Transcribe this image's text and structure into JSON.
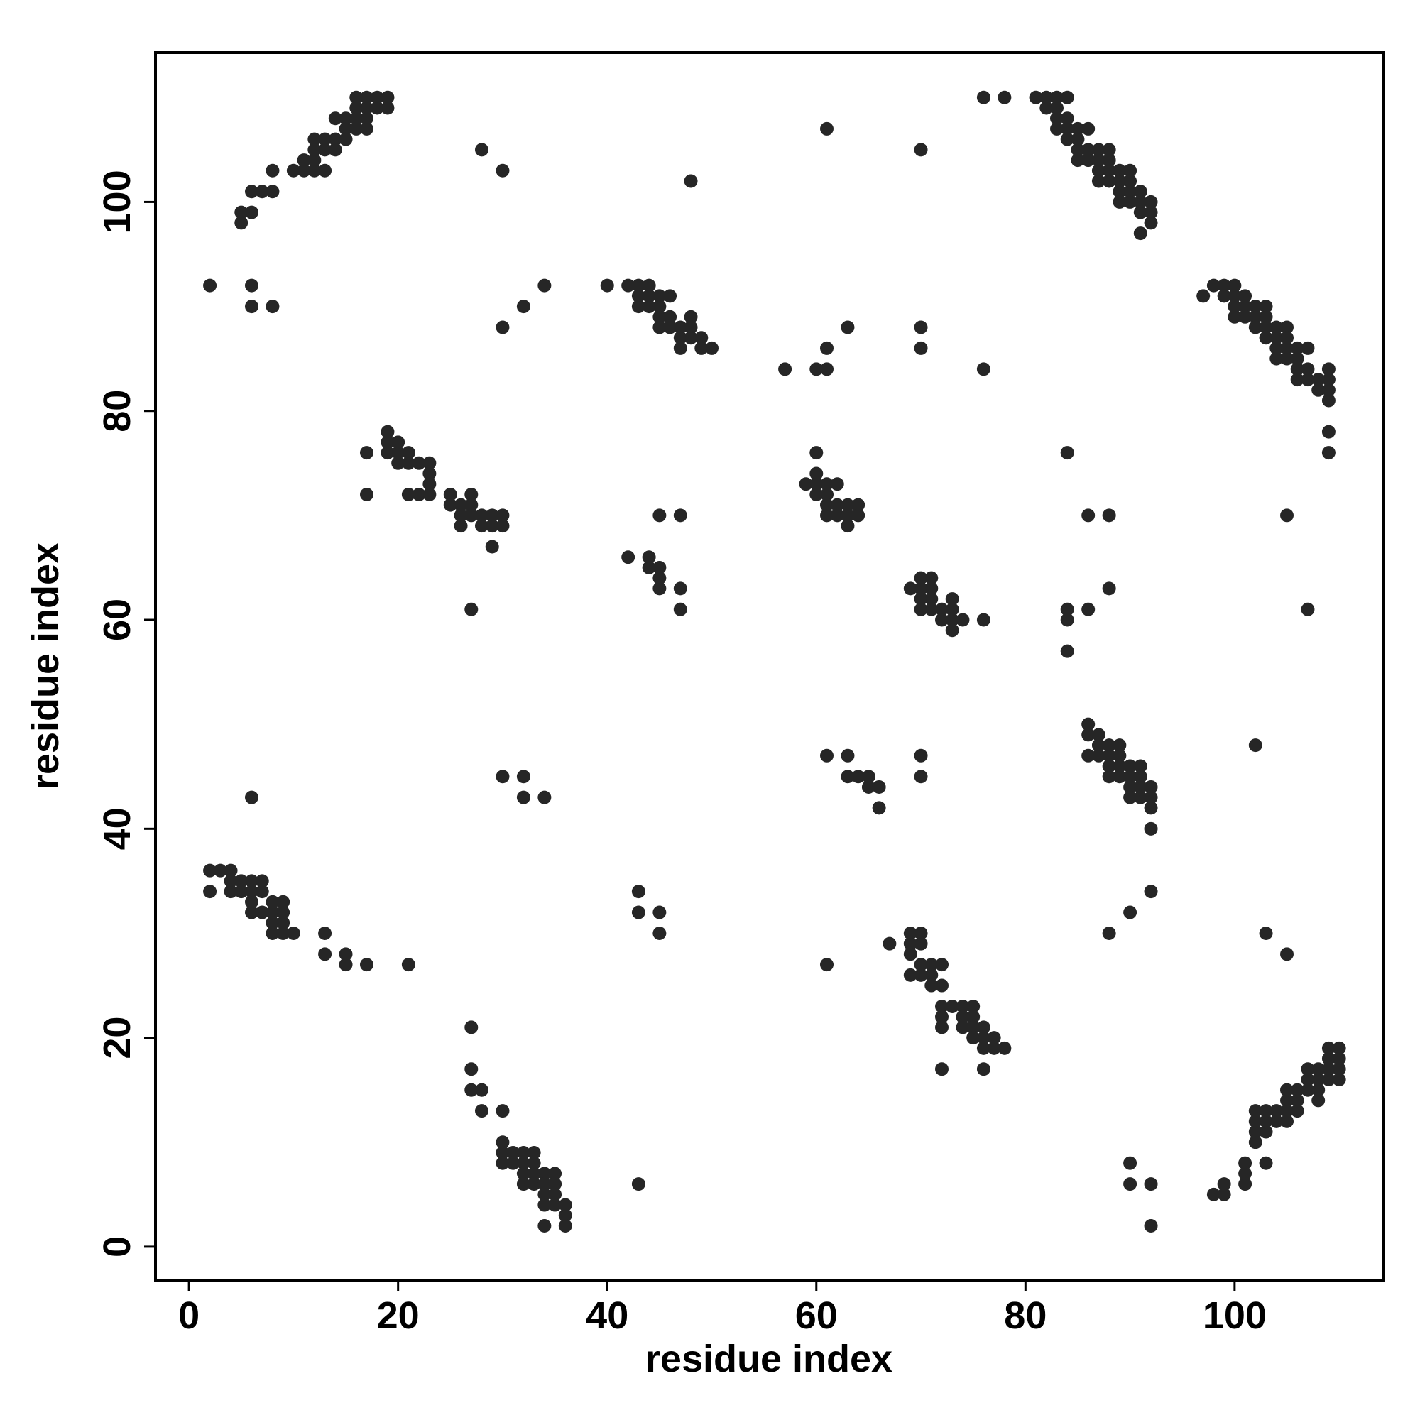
{
  "chart_data": {
    "type": "scatter",
    "xlabel": "residue index",
    "ylabel": "residue index",
    "color": "#262626",
    "xlim": [
      -3.2,
      114.2
    ],
    "ylim": [
      -3.2,
      114.3
    ],
    "xticks": [
      0,
      20,
      40,
      60,
      80,
      100
    ],
    "yticks": [
      0,
      20,
      40,
      60,
      80,
      100
    ],
    "x": [
      5,
      5,
      6,
      6,
      7,
      8,
      8,
      10,
      11,
      11,
      12,
      12,
      12,
      12,
      13,
      13,
      13,
      14,
      14,
      14,
      15,
      15,
      15,
      16,
      16,
      16,
      16,
      17,
      17,
      17,
      17,
      18,
      18,
      19,
      19,
      98,
      99,
      99,
      101,
      101,
      101,
      103,
      102,
      102,
      102,
      102,
      103,
      103,
      103,
      104,
      104,
      105,
      105,
      105,
      105,
      106,
      106,
      106,
      107,
      107,
      107,
      108,
      108,
      108,
      108,
      109,
      109,
      109,
      109,
      110,
      110,
      110,
      110,
      76,
      78,
      81,
      82,
      82,
      83,
      83,
      83,
      83,
      84,
      84,
      84,
      84,
      85,
      85,
      85,
      85,
      86,
      86,
      86,
      87,
      87,
      87,
      87,
      88,
      88,
      88,
      88,
      89,
      89,
      89,
      89,
      90,
      90,
      90,
      90,
      91,
      91,
      91,
      91,
      92,
      92,
      92,
      2,
      2,
      3,
      4,
      4,
      4,
      5,
      5,
      6,
      6,
      6,
      6,
      7,
      7,
      7,
      8,
      8,
      8,
      8,
      9,
      9,
      9,
      9,
      10,
      13,
      13,
      15,
      15,
      17,
      21,
      97,
      98,
      99,
      99,
      100,
      100,
      100,
      100,
      101,
      101,
      101,
      102,
      102,
      102,
      103,
      103,
      103,
      103,
      104,
      104,
      104,
      104,
      105,
      105,
      105,
      105,
      106,
      106,
      106,
      106,
      107,
      107,
      107,
      108,
      108,
      109,
      109,
      109,
      109,
      109,
      109,
      40,
      42,
      43,
      43,
      43,
      44,
      44,
      44,
      45,
      45,
      45,
      45,
      46,
      46,
      46,
      47,
      47,
      47,
      48,
      48,
      48,
      49,
      49,
      50,
      17,
      17,
      19,
      19,
      19,
      20,
      20,
      20,
      21,
      21,
      21,
      22,
      22,
      23,
      23,
      23,
      23,
      25,
      25,
      26,
      26,
      26,
      27,
      27,
      27,
      27,
      28,
      28,
      29,
      29,
      29,
      30,
      30,
      59,
      60,
      60,
      60,
      60,
      61,
      61,
      61,
      61,
      62,
      62,
      62,
      63,
      63,
      63,
      64,
      64,
      42,
      44,
      44,
      45,
      45,
      45,
      47,
      47,
      45,
      47,
      69,
      70,
      70,
      70,
      70,
      71,
      71,
      71,
      71,
      72,
      72,
      73,
      73,
      73,
      73,
      74,
      76,
      86,
      86,
      86,
      87,
      87,
      87,
      88,
      88,
      88,
      88,
      89,
      89,
      89,
      89,
      90,
      90,
      90,
      90,
      91,
      91,
      91,
      91,
      92,
      92,
      92,
      92,
      67,
      69,
      69,
      69,
      69,
      70,
      70,
      70,
      70,
      71,
      71,
      71,
      72,
      72,
      72,
      72,
      72,
      72,
      73,
      74,
      74,
      74,
      75,
      75,
      75,
      75,
      76,
      76,
      76,
      76,
      77,
      77,
      78,
      27,
      27,
      27,
      28,
      28,
      30,
      30,
      30,
      30,
      31,
      31,
      32,
      32,
      32,
      32,
      33,
      33,
      33,
      33,
      34,
      34,
      34,
      34,
      34,
      35,
      35,
      35,
      35,
      36,
      36,
      36,
      2,
      6,
      6,
      8,
      28,
      30,
      48,
      30,
      32,
      34,
      61,
      70,
      57,
      60,
      61,
      61,
      63,
      70,
      70,
      76,
      84,
      86,
      88,
      105,
      88,
      84,
      84,
      86,
      84,
      107,
      102,
      61,
      63,
      63,
      64,
      65,
      65,
      66,
      66,
      70,
      70,
      6,
      30,
      32,
      32,
      34,
      43,
      43,
      45,
      45,
      92,
      90,
      88,
      103,
      105,
      61,
      43,
      90,
      90,
      92,
      92
    ],
    "y": [
      98,
      99,
      99,
      101,
      101,
      101,
      103,
      103,
      103,
      104,
      103,
      104,
      105,
      106,
      103,
      105,
      106,
      105,
      106,
      108,
      106,
      107,
      108,
      107,
      108,
      109,
      110,
      107,
      108,
      109,
      110,
      109,
      110,
      109,
      110,
      5,
      5,
      6,
      6,
      7,
      8,
      8,
      10,
      11,
      12,
      13,
      11,
      12,
      13,
      12,
      13,
      12,
      13,
      14,
      15,
      13,
      14,
      15,
      15,
      16,
      17,
      14,
      15,
      16,
      17,
      16,
      17,
      18,
      19,
      16,
      17,
      18,
      19,
      110,
      110,
      110,
      110,
      109,
      110,
      109,
      108,
      107,
      110,
      108,
      107,
      106,
      107,
      106,
      105,
      104,
      107,
      105,
      104,
      105,
      104,
      103,
      102,
      105,
      104,
      103,
      102,
      103,
      102,
      101,
      100,
      103,
      102,
      101,
      100,
      101,
      100,
      99,
      97,
      100,
      99,
      98,
      36,
      34,
      36,
      36,
      35,
      34,
      35,
      34,
      35,
      34,
      33,
      32,
      35,
      34,
      32,
      33,
      32,
      31,
      30,
      33,
      32,
      31,
      30,
      30,
      30,
      28,
      28,
      27,
      27,
      27,
      91,
      92,
      92,
      91,
      92,
      91,
      90,
      89,
      91,
      90,
      89,
      90,
      89,
      88,
      90,
      89,
      88,
      87,
      88,
      87,
      86,
      85,
      88,
      87,
      86,
      85,
      86,
      85,
      84,
      83,
      86,
      84,
      83,
      83,
      82,
      84,
      83,
      82,
      81,
      78,
      76,
      92,
      92,
      92,
      91,
      90,
      92,
      91,
      90,
      91,
      90,
      89,
      88,
      91,
      89,
      88,
      88,
      87,
      86,
      89,
      88,
      87,
      87,
      86,
      86,
      76,
      72,
      78,
      77,
      76,
      77,
      76,
      75,
      76,
      75,
      72,
      75,
      72,
      75,
      74,
      73,
      72,
      72,
      71,
      71,
      70,
      69,
      72,
      71,
      70,
      61,
      70,
      69,
      70,
      69,
      67,
      70,
      69,
      73,
      76,
      74,
      73,
      72,
      73,
      72,
      71,
      70,
      73,
      71,
      70,
      71,
      70,
      69,
      71,
      70,
      66,
      66,
      65,
      65,
      64,
      63,
      63,
      61,
      70,
      70,
      63,
      64,
      63,
      62,
      61,
      64,
      63,
      62,
      61,
      61,
      60,
      62,
      61,
      60,
      59,
      60,
      60,
      50,
      49,
      47,
      49,
      48,
      47,
      48,
      47,
      46,
      45,
      48,
      47,
      46,
      45,
      46,
      45,
      44,
      43,
      46,
      45,
      44,
      43,
      44,
      43,
      42,
      40,
      29,
      30,
      29,
      28,
      26,
      30,
      29,
      27,
      26,
      27,
      26,
      25,
      27,
      25,
      23,
      22,
      21,
      17,
      23,
      23,
      22,
      21,
      23,
      22,
      21,
      20,
      21,
      20,
      19,
      17,
      20,
      19,
      19,
      21,
      17,
      15,
      15,
      13,
      13,
      10,
      9,
      8,
      9,
      8,
      9,
      8,
      7,
      6,
      9,
      8,
      7,
      6,
      7,
      6,
      5,
      4,
      2,
      7,
      6,
      5,
      4,
      4,
      3,
      2,
      92,
      92,
      90,
      90,
      105,
      103,
      102,
      88,
      90,
      92,
      107,
      105,
      84,
      84,
      84,
      86,
      88,
      88,
      86,
      84,
      76,
      70,
      70,
      70,
      63,
      61,
      60,
      61,
      57,
      61,
      48,
      47,
      47,
      45,
      45,
      45,
      44,
      44,
      42,
      47,
      45,
      43,
      45,
      45,
      43,
      43,
      34,
      32,
      32,
      30,
      34,
      32,
      30,
      30,
      28,
      27,
      6,
      8,
      6,
      6,
      2
    ]
  }
}
